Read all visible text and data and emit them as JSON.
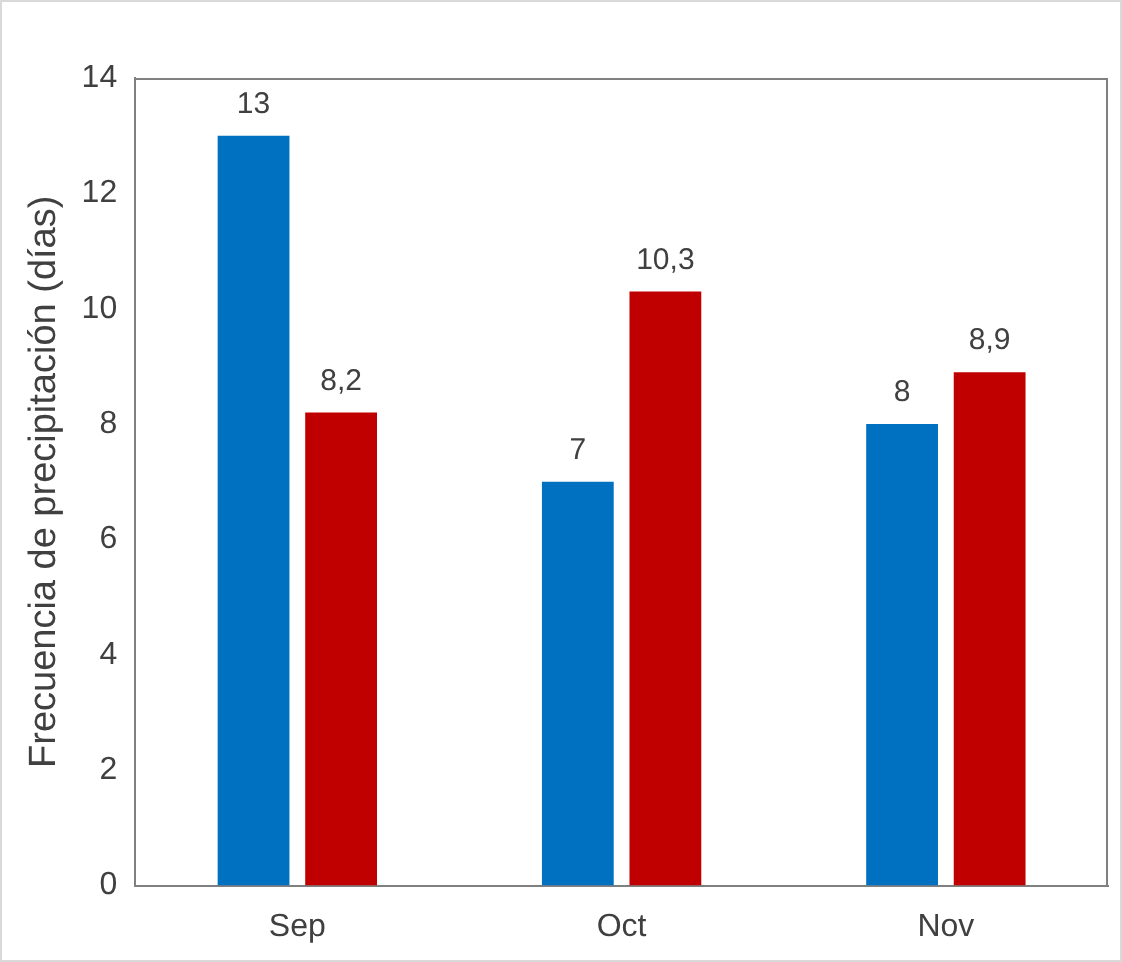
{
  "chart_data": {
    "type": "bar",
    "ylabel": "Frecuencia de precipitación (días)",
    "categories": [
      "Sep",
      "Oct",
      "Nov"
    ],
    "series": [
      {
        "color": "#0070c0",
        "values": [
          13,
          7,
          8
        ],
        "value_labels": [
          "13",
          "7",
          "8"
        ]
      },
      {
        "color": "#c00000",
        "values": [
          8.2,
          10.3,
          8.9
        ],
        "value_labels": [
          "8,2",
          "10,3",
          "8,9"
        ]
      }
    ],
    "ylim": [
      0,
      14
    ],
    "yticks": [
      0,
      2,
      4,
      6,
      8,
      10,
      12,
      14
    ],
    "grid": false,
    "legend": false
  }
}
